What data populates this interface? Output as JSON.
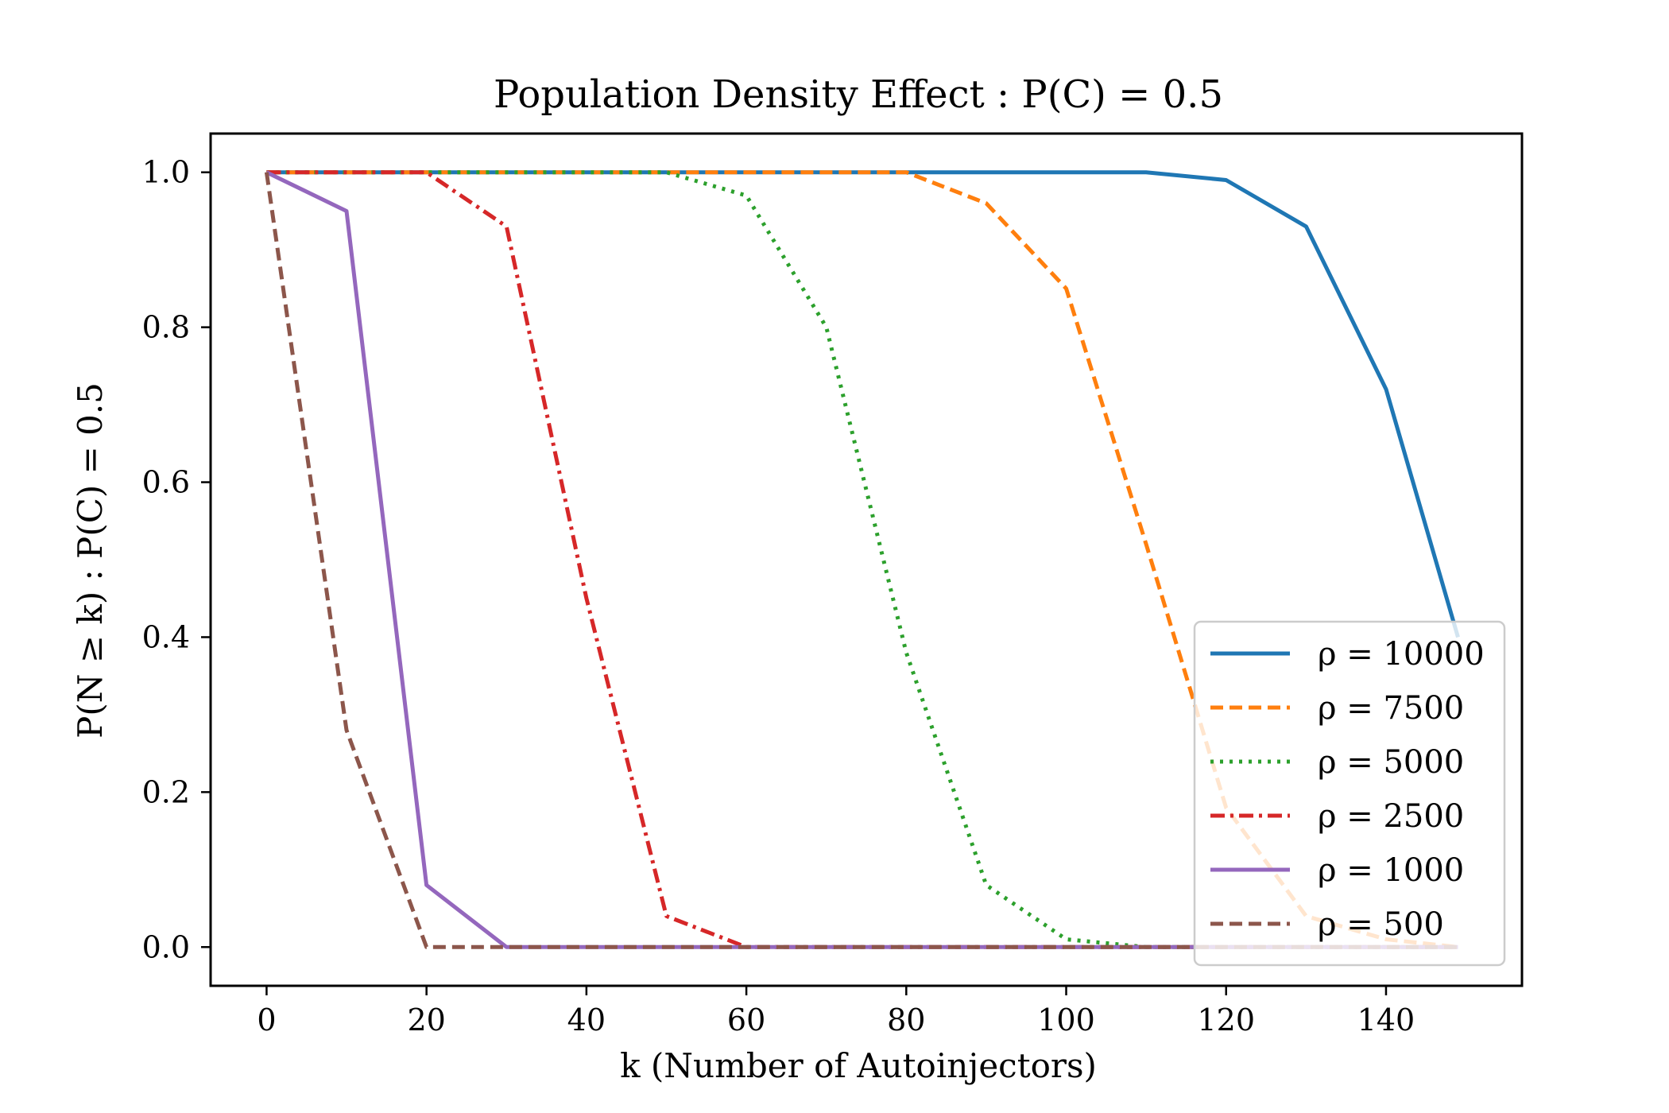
{
  "chart_data": {
    "type": "line",
    "title": "Population Density Effect : P(C) = 0.5",
    "xlabel": "k (Number of Autoinjectors)",
    "ylabel": "P(N ≥ k) : P(C) = 0.5",
    "xlim": [
      -7,
      157
    ],
    "ylim": [
      -0.05,
      1.05
    ],
    "xticks": [
      0,
      20,
      40,
      60,
      80,
      100,
      120,
      140
    ],
    "yticks": [
      0.0,
      0.2,
      0.4,
      0.6,
      0.8,
      1.0
    ],
    "x": [
      0,
      10,
      20,
      30,
      40,
      50,
      60,
      70,
      80,
      90,
      100,
      110,
      120,
      130,
      140,
      149
    ],
    "grid": false,
    "legend_position": "lower right",
    "series": [
      {
        "name": "ρ = 10000",
        "color": "#1f77b4",
        "dash": "solid",
        "values": [
          1.0,
          1.0,
          1.0,
          1.0,
          1.0,
          1.0,
          1.0,
          1.0,
          1.0,
          1.0,
          1.0,
          1.0,
          0.99,
          0.93,
          0.72,
          0.4
        ]
      },
      {
        "name": "ρ = 7500",
        "color": "#ff7f0e",
        "dash": "dashed",
        "values": [
          1.0,
          1.0,
          1.0,
          1.0,
          1.0,
          1.0,
          1.0,
          1.0,
          1.0,
          0.96,
          0.85,
          0.52,
          0.18,
          0.04,
          0.01,
          0.0
        ]
      },
      {
        "name": "ρ = 5000",
        "color": "#2ca02c",
        "dash": "dotted",
        "values": [
          1.0,
          1.0,
          1.0,
          1.0,
          1.0,
          1.0,
          0.97,
          0.8,
          0.38,
          0.08,
          0.01,
          0.0,
          0.0,
          0.0,
          0.0,
          0.0
        ]
      },
      {
        "name": "ρ = 2500",
        "color": "#d62728",
        "dash": "dashdot",
        "values": [
          1.0,
          1.0,
          1.0,
          0.93,
          0.45,
          0.04,
          0.0,
          0.0,
          0.0,
          0.0,
          0.0,
          0.0,
          0.0,
          0.0,
          0.0,
          0.0
        ]
      },
      {
        "name": "ρ = 1000",
        "color": "#9467bd",
        "dash": "solid",
        "values": [
          1.0,
          0.95,
          0.08,
          0.0,
          0.0,
          0.0,
          0.0,
          0.0,
          0.0,
          0.0,
          0.0,
          0.0,
          0.0,
          0.0,
          0.0,
          0.0
        ]
      },
      {
        "name": "ρ = 500",
        "color": "#8c564b",
        "dash": "dashed",
        "values": [
          1.0,
          0.28,
          0.0,
          0.0,
          0.0,
          0.0,
          0.0,
          0.0,
          0.0,
          0.0,
          0.0,
          0.0,
          0.0,
          0.0,
          0.0,
          0.0
        ]
      }
    ]
  }
}
